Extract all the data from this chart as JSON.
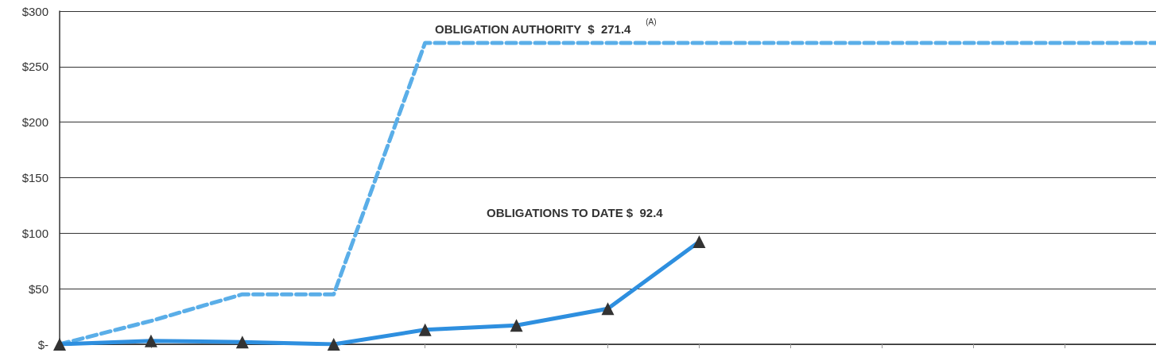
{
  "chart_data": {
    "type": "line",
    "categories": [
      null,
      null,
      null,
      null,
      null,
      null,
      null,
      null,
      null,
      null,
      null,
      null,
      null
    ],
    "series": [
      {
        "color": "#5aaee8",
        "line_style": "dashed",
        "marker": "none",
        "values": [
          0,
          21,
          45,
          45,
          271.4,
          271.4,
          271.4,
          271.4,
          271.4,
          271.4,
          271.4,
          271.4,
          271.4
        ]
      },
      {
        "color": "#2e8fdf",
        "line_style": "solid",
        "marker": "triangle",
        "values": [
          0,
          3,
          2,
          0,
          13,
          17,
          32,
          92.4,
          null,
          null,
          null,
          null,
          null
        ]
      }
    ],
    "ylim": [
      0,
      300
    ],
    "yticks": [
      {
        "value": 0,
        "label": "$-"
      },
      {
        "value": 50,
        "label": "$50"
      },
      {
        "value": 100,
        "label": "$100"
      },
      {
        "value": 150,
        "label": "$150"
      },
      {
        "value": 200,
        "label": "$200"
      },
      {
        "value": 250,
        "label": "$250"
      },
      {
        "value": 300,
        "label": "$300"
      }
    ],
    "grid": "y",
    "tick_labels": "y",
    "annotations": [
      "OBLIGATION AUTHORITY  $  271.4$^{(A)}$",
      "OBLIGATIONS TO DATE $  92.4"
    ]
  }
}
